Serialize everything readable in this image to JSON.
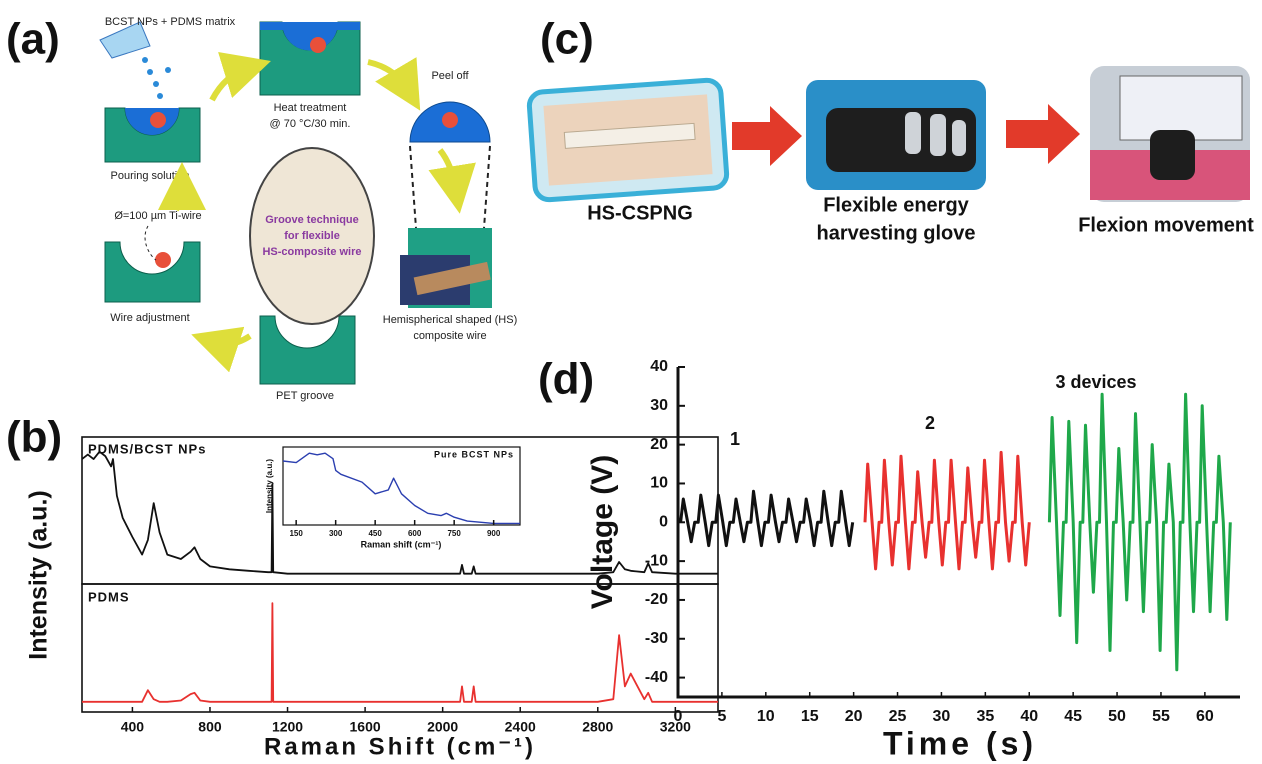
{
  "panel_labels": [
    "(a)",
    "(b)",
    "(c)",
    "(d)"
  ],
  "diagram_a": {
    "material": "BCST NPs + PDMS matrix",
    "pouring": "Pouring solution",
    "heat": [
      "Heat treatment",
      "@ 70 °C/30 min."
    ],
    "peel": "Peel off",
    "product": [
      "Hemispherical shaped (HS)",
      "composite wire"
    ],
    "groove": "PET groove",
    "wire": "Ø=100 µm Ti-wire",
    "adjust": "Wire adjustment",
    "center": [
      "Groove technique",
      "for flexible",
      "HS-composite wire"
    ]
  },
  "photos_c": {
    "device": "HS-CSPNG",
    "glove": [
      "Flexible energy",
      "harvesting glove"
    ],
    "movement": "Flexion movement"
  },
  "chart_data": [
    {
      "type": "line",
      "title": "PDMS/BCST NPs",
      "ylabel": "Intensity (a.u.)",
      "color": "#111111",
      "xlim": [
        140,
        3420
      ],
      "ylim": [
        0,
        1
      ],
      "x": [
        140,
        170,
        200,
        230,
        260,
        290,
        300,
        320,
        350,
        400,
        450,
        480,
        510,
        540,
        580,
        650,
        700,
        720,
        750,
        800,
        900,
        1000,
        1100,
        1118,
        1122,
        1126,
        1200,
        1600,
        2000,
        2090,
        2100,
        2110,
        2150,
        2160,
        2170,
        2400,
        2800,
        2880,
        2910,
        2940,
        2970,
        3040,
        3060,
        3080,
        3200,
        3420
      ],
      "values": [
        0.85,
        0.88,
        0.85,
        0.9,
        0.87,
        0.8,
        0.85,
        0.6,
        0.45,
        0.32,
        0.2,
        0.3,
        0.55,
        0.35,
        0.2,
        0.17,
        0.22,
        0.25,
        0.17,
        0.12,
        0.1,
        0.09,
        0.08,
        0.08,
        0.68,
        0.08,
        0.07,
        0.07,
        0.07,
        0.07,
        0.13,
        0.07,
        0.07,
        0.12,
        0.07,
        0.07,
        0.07,
        0.08,
        0.15,
        0.1,
        0.09,
        0.08,
        0.14,
        0.08,
        0.07,
        0.07
      ]
    },
    {
      "type": "line",
      "title": "PDMS",
      "xlabel": "Raman Shift (cm⁻¹)",
      "color": "#e8312f",
      "xlim": [
        140,
        3420
      ],
      "ylim": [
        0,
        1
      ],
      "xticks": [
        400,
        800,
        1200,
        1600,
        2000,
        2400,
        2800,
        3200
      ],
      "x": [
        140,
        170,
        200,
        230,
        260,
        290,
        300,
        320,
        350,
        400,
        450,
        480,
        510,
        540,
        580,
        650,
        700,
        720,
        750,
        800,
        900,
        1000,
        1100,
        1118,
        1122,
        1126,
        1200,
        1600,
        2000,
        2090,
        2100,
        2110,
        2150,
        2160,
        2170,
        2400,
        2800,
        2880,
        2910,
        2940,
        2970,
        3040,
        3060,
        3080,
        3200,
        3420
      ],
      "values": [
        0.08,
        0.08,
        0.08,
        0.08,
        0.08,
        0.08,
        0.08,
        0.08,
        0.08,
        0.08,
        0.08,
        0.17,
        0.1,
        0.08,
        0.08,
        0.09,
        0.14,
        0.15,
        0.09,
        0.08,
        0.08,
        0.08,
        0.08,
        0.08,
        0.85,
        0.08,
        0.08,
        0.08,
        0.08,
        0.08,
        0.2,
        0.08,
        0.08,
        0.2,
        0.08,
        0.08,
        0.08,
        0.1,
        0.6,
        0.2,
        0.3,
        0.1,
        0.15,
        0.08,
        0.08,
        0.08
      ]
    },
    {
      "type": "line",
      "title": "Pure BCST NPs",
      "xlabel": "Raman shift (cm⁻¹)",
      "ylabel": "Intensity (a.u.)",
      "color": "#2b3fb0",
      "xlim": [
        100,
        1000
      ],
      "ylim": [
        0,
        1
      ],
      "xticks": [
        150,
        300,
        450,
        600,
        750,
        900
      ],
      "x": [
        100,
        150,
        200,
        230,
        260,
        290,
        300,
        320,
        400,
        450,
        500,
        520,
        550,
        600,
        650,
        700,
        720,
        750,
        800,
        900,
        1000
      ],
      "values": [
        0.82,
        0.8,
        0.92,
        0.9,
        0.92,
        0.85,
        0.7,
        0.65,
        0.55,
        0.4,
        0.45,
        0.6,
        0.4,
        0.25,
        0.15,
        0.12,
        0.15,
        0.1,
        0.05,
        0.02,
        0.02
      ]
    },
    {
      "type": "line",
      "xlabel": "Time (s)",
      "ylabel": "Voltage (V)",
      "xlim": [
        0,
        64
      ],
      "ylim": [
        -45,
        40
      ],
      "xticks": [
        0,
        5,
        10,
        15,
        20,
        25,
        30,
        35,
        40,
        45,
        50,
        55,
        60
      ],
      "yticks": [
        -40,
        -30,
        -20,
        -10,
        0,
        10,
        20,
        30,
        40
      ],
      "series": [
        {
          "name": "1",
          "color": "#111111",
          "x": [
            0.3,
            0.6,
            1.1,
            1.5,
            1.9,
            2.3,
            2.6,
            3.1,
            3.5,
            3.9,
            4.3,
            4.6,
            5.1,
            5.5,
            5.9,
            6.3,
            6.6,
            7.1,
            7.5,
            7.9,
            8.3,
            8.6,
            9.1,
            9.5,
            9.9,
            10.3,
            10.6,
            11.1,
            11.5,
            11.9,
            12.3,
            12.6,
            13.1,
            13.5,
            13.9,
            14.3,
            14.6,
            15.1,
            15.5,
            15.9,
            16.3,
            16.6,
            17.1,
            17.5,
            17.9,
            18.3,
            18.6,
            19.1,
            19.5,
            19.9
          ],
          "values": [
            0,
            6,
            0,
            -5,
            0,
            0,
            7,
            0,
            -6,
            0,
            0,
            7,
            0,
            -6,
            0,
            0,
            6,
            0,
            -5,
            0,
            0,
            8,
            0,
            -6,
            0,
            0,
            7,
            0,
            -5,
            0,
            0,
            6,
            0,
            -5,
            0,
            0,
            6,
            0,
            -6,
            0,
            0,
            8,
            0,
            -6,
            0,
            0,
            8,
            0,
            -6,
            0
          ]
        },
        {
          "name": "2",
          "color": "#e8312f",
          "x": [
            21.3,
            21.6,
            22.1,
            22.5,
            22.9,
            23.2,
            23.5,
            24.0,
            24.4,
            24.8,
            25.1,
            25.4,
            25.9,
            26.3,
            26.7,
            27.0,
            27.3,
            27.8,
            28.2,
            28.6,
            28.9,
            29.2,
            29.7,
            30.1,
            30.5,
            30.8,
            31.1,
            31.6,
            32.0,
            32.4,
            32.7,
            33.0,
            33.5,
            33.9,
            34.3,
            34.6,
            34.9,
            35.4,
            35.8,
            36.2,
            36.5,
            36.8,
            37.3,
            37.7,
            38.1,
            38.4,
            38.7,
            39.2,
            39.6,
            40.0
          ],
          "values": [
            0,
            15,
            0,
            -12,
            0,
            0,
            16,
            0,
            -11,
            0,
            0,
            17,
            0,
            -12,
            0,
            0,
            13,
            0,
            -9,
            0,
            0,
            16,
            0,
            -11,
            0,
            0,
            16,
            0,
            -12,
            0,
            0,
            14,
            0,
            -9,
            0,
            0,
            16,
            0,
            -12,
            0,
            0,
            18,
            0,
            -10,
            0,
            0,
            17,
            0,
            -11,
            0
          ]
        },
        {
          "name": "3 devices",
          "color": "#1fa84a",
          "x": [
            42.3,
            42.6,
            43.1,
            43.5,
            43.9,
            44.2,
            44.5,
            45.0,
            45.4,
            45.8,
            46.1,
            46.4,
            46.9,
            47.3,
            47.7,
            48.0,
            48.3,
            48.8,
            49.2,
            49.6,
            49.9,
            50.2,
            50.7,
            51.1,
            51.5,
            51.8,
            52.1,
            52.6,
            53.0,
            53.4,
            53.7,
            54.0,
            54.5,
            54.9,
            55.3,
            55.6,
            55.9,
            56.4,
            56.8,
            57.2,
            57.5,
            57.8,
            58.3,
            58.7,
            59.1,
            59.4,
            59.7,
            60.2,
            60.6,
            61.0,
            61.3,
            61.6,
            62.1,
            62.5,
            62.9
          ],
          "values": [
            0,
            27,
            0,
            -24,
            0,
            0,
            26,
            0,
            -31,
            0,
            0,
            25,
            0,
            -18,
            0,
            0,
            33,
            0,
            -33,
            0,
            0,
            19,
            0,
            -20,
            0,
            0,
            28,
            0,
            -23,
            0,
            0,
            20,
            0,
            -33,
            0,
            0,
            15,
            0,
            -38,
            0,
            0,
            33,
            0,
            -23,
            0,
            0,
            30,
            0,
            -23,
            0,
            0,
            17,
            0,
            -25,
            0
          ]
        }
      ]
    }
  ]
}
